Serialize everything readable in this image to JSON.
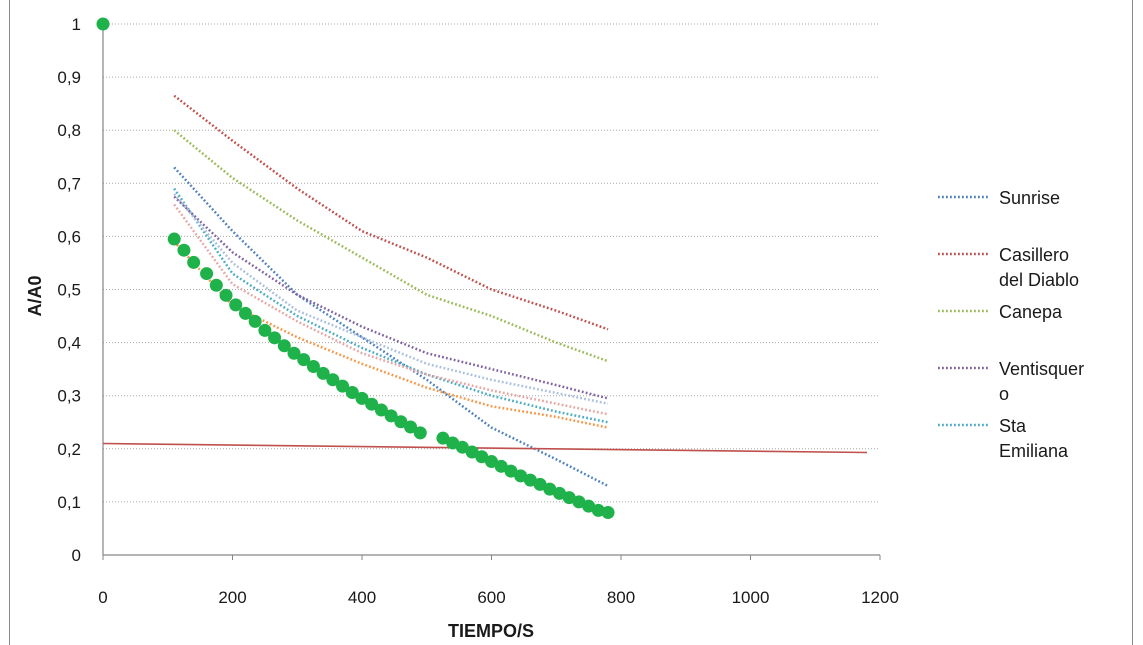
{
  "chart_data": {
    "type": "line",
    "xlabel": "TIEMPO/S",
    "ylabel": "A/A0",
    "xlim": [
      0,
      1200
    ],
    "ylim": [
      0,
      1
    ],
    "x_ticks": [
      "0",
      "200",
      "400",
      "600",
      "800",
      "1000",
      "1200"
    ],
    "y_ticks": [
      "0",
      "0,1",
      "0,2",
      "0,3",
      "0,4",
      "0,5",
      "0,6",
      "0,7",
      "0,8",
      "0,9",
      "1"
    ],
    "grid": "horizontal dotted",
    "legend_position": "right",
    "legend": [
      {
        "lines": [
          "Sunrise"
        ],
        "color": "#4F81BD"
      },
      {
        "lines": [
          "Casillero",
          "del Diablo"
        ],
        "color": "#C0504D"
      },
      {
        "lines": [
          "Canepa"
        ],
        "color": "#9BBB59"
      },
      {
        "lines": [
          "Ventisquer",
          "o"
        ],
        "color": "#8064A2"
      },
      {
        "lines": [
          "Sta",
          "Emiliana"
        ],
        "color": "#4BACC6"
      }
    ],
    "series": [
      {
        "name": "Sunrise",
        "color": "#4F81BD",
        "style": "dotted",
        "x": [
          110,
          200,
          300,
          400,
          500,
          600,
          700,
          780
        ],
        "y": [
          0.73,
          0.61,
          0.49,
          0.41,
          0.33,
          0.24,
          0.18,
          0.13
        ]
      },
      {
        "name": "Casillero del Diablo",
        "color": "#C0504D",
        "style": "dotted",
        "x": [
          110,
          200,
          300,
          400,
          500,
          600,
          700,
          780
        ],
        "y": [
          0.865,
          0.78,
          0.69,
          0.61,
          0.56,
          0.5,
          0.46,
          0.425
        ]
      },
      {
        "name": "Canepa",
        "color": "#9BBB59",
        "style": "dotted",
        "x": [
          110,
          200,
          300,
          400,
          500,
          600,
          700,
          780
        ],
        "y": [
          0.8,
          0.71,
          0.63,
          0.56,
          0.49,
          0.45,
          0.4,
          0.365
        ]
      },
      {
        "name": "Ventisquero",
        "color": "#8064A2",
        "style": "dotted",
        "x": [
          110,
          200,
          300,
          400,
          500,
          600,
          700,
          780
        ],
        "y": [
          0.675,
          0.57,
          0.49,
          0.43,
          0.38,
          0.35,
          0.32,
          0.295
        ]
      },
      {
        "name": "Sta Emiliana",
        "color": "#4BACC6",
        "style": "dotted",
        "x": [
          110,
          200,
          300,
          400,
          500,
          600,
          700,
          780
        ],
        "y": [
          0.69,
          0.53,
          0.45,
          0.39,
          0.34,
          0.3,
          0.27,
          0.25
        ]
      },
      {
        "color": "#F79646",
        "style": "dotted",
        "x": [
          110,
          200,
          300,
          400,
          500,
          600,
          700,
          780
        ],
        "y": [
          0.59,
          0.47,
          0.41,
          0.36,
          0.315,
          0.28,
          0.26,
          0.24
        ]
      },
      {
        "color": "#E6A6A4",
        "style": "dotted",
        "x": [
          110,
          200,
          300,
          400,
          500,
          600,
          700,
          780
        ],
        "y": [
          0.66,
          0.51,
          0.44,
          0.38,
          0.34,
          0.31,
          0.285,
          0.265
        ]
      },
      {
        "color": "#A9C0DE",
        "style": "dotted",
        "x": [
          110,
          200,
          300,
          400,
          500,
          600,
          700,
          780
        ],
        "y": [
          0.68,
          0.55,
          0.46,
          0.41,
          0.36,
          0.33,
          0.305,
          0.285
        ]
      },
      {
        "color": "#C0504D",
        "style": "solid",
        "x": [
          0,
          1180
        ],
        "y": [
          0.21,
          0.193
        ]
      },
      {
        "color": "#1FB14A",
        "style": "markers",
        "x": [
          0,
          110,
          125,
          140,
          160,
          175,
          190,
          205,
          220,
          235,
          250,
          265,
          280,
          295,
          310,
          325,
          340,
          355,
          370,
          385,
          400,
          415,
          430,
          445,
          460,
          475,
          490,
          525,
          540,
          555,
          570,
          585,
          600,
          615,
          630,
          645,
          660,
          675,
          690,
          705,
          720,
          735,
          750,
          765,
          780
        ],
        "y": [
          1.0,
          0.595,
          0.574,
          0.551,
          0.53,
          0.508,
          0.489,
          0.471,
          0.455,
          0.44,
          0.423,
          0.409,
          0.394,
          0.38,
          0.368,
          0.355,
          0.342,
          0.33,
          0.318,
          0.306,
          0.295,
          0.284,
          0.273,
          0.262,
          0.251,
          0.241,
          0.23,
          0.22,
          0.211,
          0.203,
          0.194,
          0.185,
          0.176,
          0.167,
          0.158,
          0.149,
          0.141,
          0.133,
          0.124,
          0.116,
          0.108,
          0.1,
          0.092,
          0.084,
          0.08
        ]
      }
    ]
  }
}
